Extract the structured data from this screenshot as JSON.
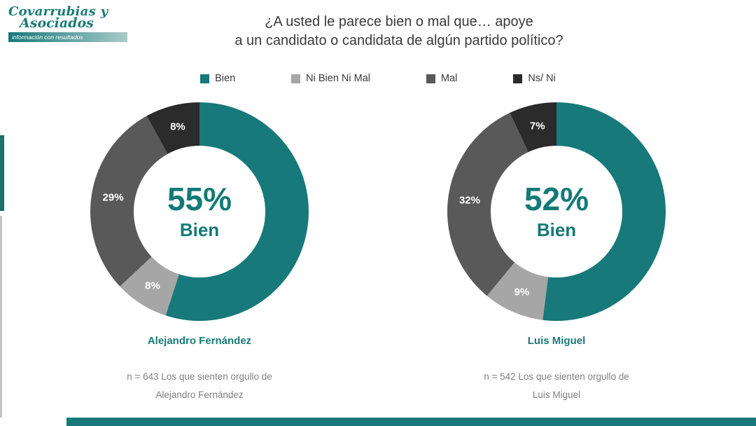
{
  "logo": {
    "name_line1": "Covarrubias y",
    "name_line2": "Asociados",
    "tagline": "información con resultados"
  },
  "title": {
    "line1": "¿A usted le parece bien o mal que… apoye",
    "line2": "a un candidato o candidata de algún partido político?"
  },
  "colors": {
    "bien": "#17797a",
    "ni_bien_ni_mal": "#a6a6a6",
    "mal": "#595959",
    "ns_ni": "#2b2b2b",
    "accent_teal": "#17797a",
    "footnote_gray": "#808080"
  },
  "legend": [
    {
      "label": "Bien",
      "color": "#17797a"
    },
    {
      "label": "Ni Bien Ni Mal",
      "color": "#a6a6a6"
    },
    {
      "label": "Mal",
      "color": "#595959"
    },
    {
      "label": "Ns/ Ni",
      "color": "#2b2b2b"
    }
  ],
  "chart_data": [
    {
      "type": "pie",
      "title": "Alejandro Fernández",
      "center_value": "55%",
      "center_label": "Bien",
      "segments": [
        {
          "label": "Bien",
          "value": 55,
          "color": "#17797a",
          "ring_label": false
        },
        {
          "label": "Ni Bien Ni Mal",
          "value": 8,
          "color": "#a6a6a6",
          "ring_label": true
        },
        {
          "label": "Mal",
          "value": 29,
          "color": "#595959",
          "ring_label": true
        },
        {
          "label": "Ns/ Ni",
          "value": 8,
          "color": "#2b2b2b",
          "ring_label": true
        }
      ],
      "footnote_line1": "n = 643 Los que sienten orgullo de",
      "footnote_line2": "Alejandro Fernández"
    },
    {
      "type": "pie",
      "title": "Luis Miguel",
      "center_value": "52%",
      "center_label": "Bien",
      "segments": [
        {
          "label": "Bien",
          "value": 52,
          "color": "#17797a",
          "ring_label": false
        },
        {
          "label": "Ni Bien Ni Mal",
          "value": 9,
          "color": "#a6a6a6",
          "ring_label": true
        },
        {
          "label": "Mal",
          "value": 32,
          "color": "#595959",
          "ring_label": true
        },
        {
          "label": "Ns/ Ni",
          "value": 7,
          "color": "#2b2b2b",
          "ring_label": true
        }
      ],
      "footnote_line1": "n = 542 Los que sienten orgullo de",
      "footnote_line2": "Luis Miguel"
    }
  ]
}
